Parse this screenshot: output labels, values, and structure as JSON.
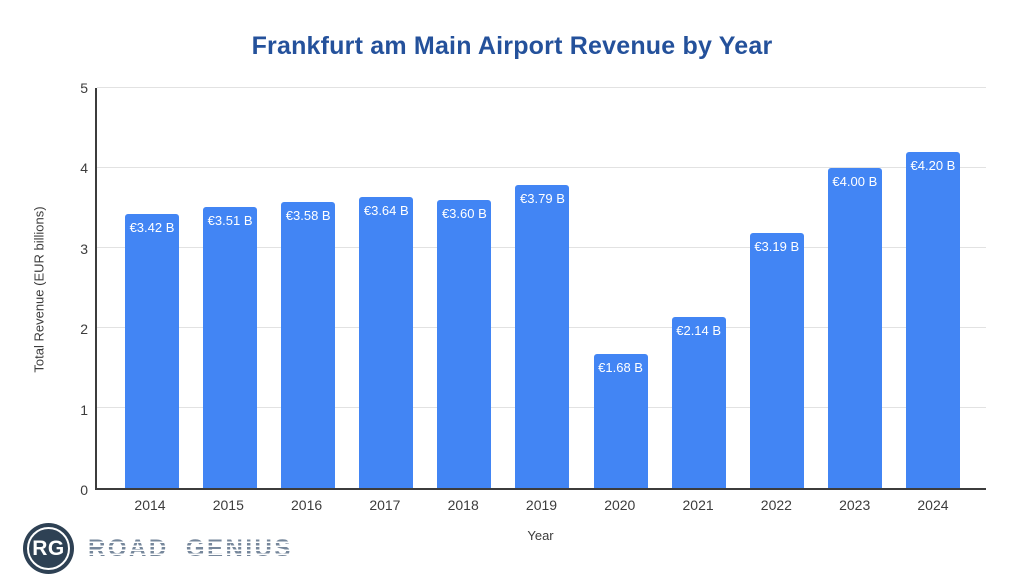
{
  "chart_data": {
    "type": "bar",
    "title": "Frankfurt am Main Airport Revenue by Year",
    "xlabel": "Year",
    "ylabel": "Total Revenue (EUR billions)",
    "categories": [
      "2014",
      "2015",
      "2016",
      "2017",
      "2018",
      "2019",
      "2020",
      "2021",
      "2022",
      "2023",
      "2024"
    ],
    "values": [
      3.42,
      3.51,
      3.58,
      3.64,
      3.6,
      3.79,
      1.68,
      2.14,
      3.19,
      4.0,
      4.2
    ],
    "bar_labels": [
      "€3.42 B",
      "€3.51 B",
      "€3.58 B",
      "€3.64 B",
      "€3.60 B",
      "€3.79 B",
      "€1.68 B",
      "€2.14 B",
      "€3.19 B",
      "€4.00 B",
      "€4.20 B"
    ],
    "ylim": [
      0,
      5
    ],
    "yticks": [
      0,
      1,
      2,
      3,
      4,
      5
    ],
    "grid": true,
    "legend": false,
    "bar_color": "#4285f4",
    "bar_label_color": "#ffffff",
    "title_color": "#24519b"
  },
  "branding": {
    "badge_initials": "RG",
    "brand_name": "ROAD GENIUS",
    "badge_color": "#2e4154"
  }
}
